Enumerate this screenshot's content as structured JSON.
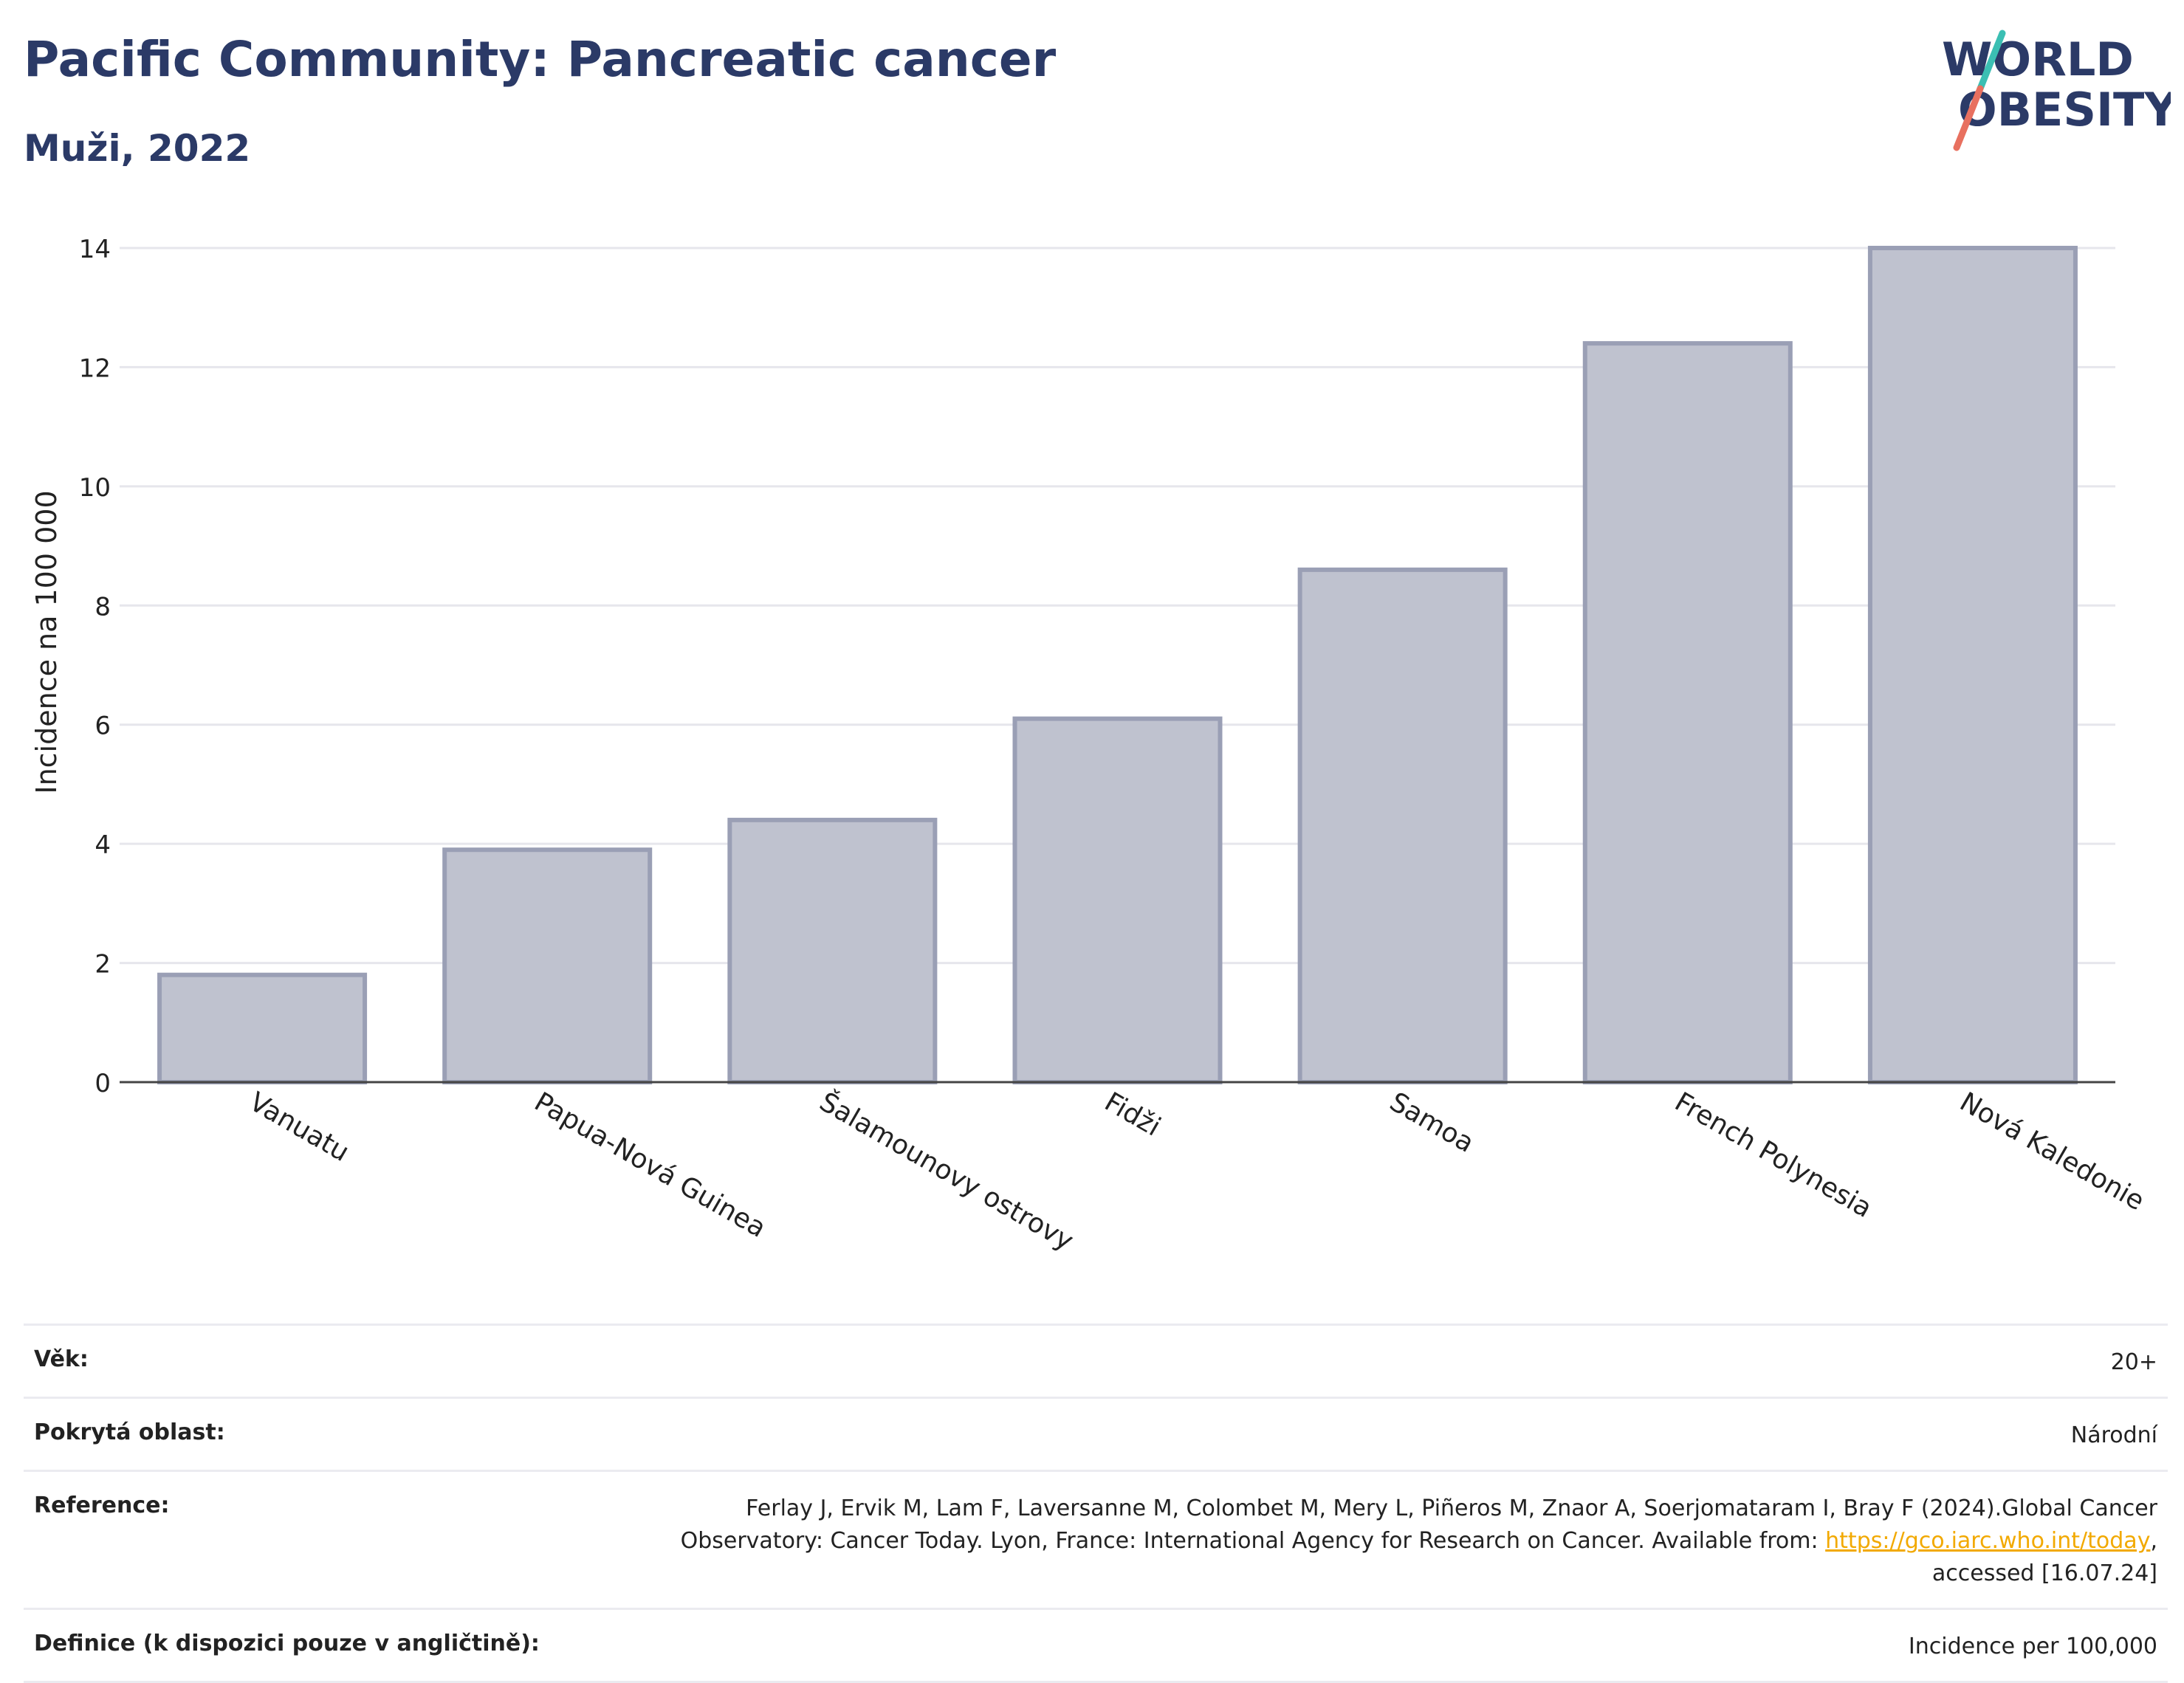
{
  "header": {
    "title": "Pacific Community: Pancreatic cancer",
    "subtitle": "Muži, 2022"
  },
  "logo": {
    "line1": "WORLD",
    "line2": "OBESITY",
    "accent_colors": [
      "#3bbfb3",
      "#e8705f"
    ],
    "text_color": "#2b3a67"
  },
  "chart_data": {
    "type": "bar",
    "categories": [
      "Vanuatu",
      "Papua-Nová Guinea",
      "Šalamounovy ostrovy",
      "Fidži",
      "Samoa",
      "French Polynesia",
      "Nová Kaledonie"
    ],
    "values": [
      1.8,
      3.9,
      4.4,
      6.1,
      8.6,
      12.4,
      14.0
    ],
    "title": "Pacific Community: Pancreatic cancer",
    "subtitle": "Muži, 2022",
    "xlabel": "",
    "ylabel": "Incidence na 100 000",
    "ylim": [
      0,
      14
    ],
    "yticks": [
      0,
      2,
      4,
      6,
      8,
      10,
      12,
      14
    ],
    "grid": true,
    "legend": "none",
    "bar_fill": "#bfc2cf",
    "bar_stroke": "#9a9fb5"
  },
  "info": {
    "rows": [
      {
        "label": "Věk:",
        "value": "20+"
      },
      {
        "label": "Pokrytá oblast:",
        "value": "Národní"
      },
      {
        "label": "Reference:",
        "value_before": "Ferlay J, Ervik M, Lam F, Laversanne M, Colombet M, Mery L, Piñeros M, Znaor A, Soerjomataram I, Bray F (2024).Global Cancer Observatory: Cancer Today. Lyon, France: International Agency for Research on Cancer. Available from: ",
        "link": "https://gco.iarc.who.int/today",
        "value_after": ", accessed [16.07.24]"
      },
      {
        "label": "Definice (k dispozici pouze v angličtině):",
        "value": "Incidence per 100,000"
      }
    ]
  }
}
